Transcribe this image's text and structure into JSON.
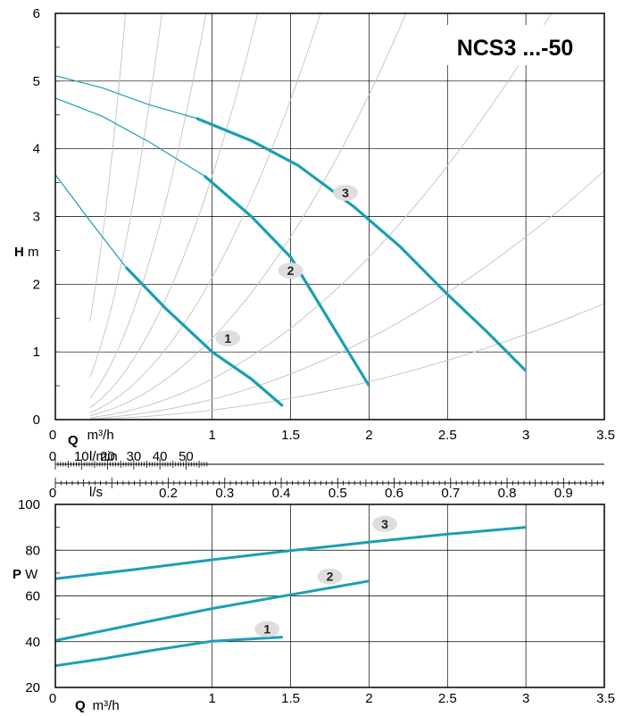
{
  "chart_title": "NCS3 ...-50",
  "colors": {
    "curve": "#1a9fb3",
    "system": "#c2c2c2",
    "grid": "#000000",
    "badge": "#dedede"
  },
  "chart_data": [
    {
      "type": "line",
      "name": "head",
      "ylabel_bold": "H",
      "ylabel": "m",
      "xlim": [
        0,
        3.5
      ],
      "ylim": [
        0,
        6
      ],
      "x_ticks": [
        "0",
        "1",
        "1.5",
        "2",
        "2.5",
        "3",
        "3.5"
      ],
      "x_tick_values": [
        0,
        1,
        1.5,
        2,
        2.5,
        3,
        3.5
      ],
      "y_ticks": [
        "0",
        "1",
        "2",
        "3",
        "4",
        "5",
        "6"
      ],
      "y_tick_values": [
        0,
        1,
        2,
        3,
        4,
        5,
        6
      ],
      "series": [
        {
          "label": "1",
          "thin": [
            [
              0,
              3.62
            ],
            [
              0.2,
              3.0
            ],
            [
              0.45,
              2.25
            ]
          ],
          "thick": [
            [
              0.45,
              2.25
            ],
            [
              0.7,
              1.65
            ],
            [
              1.0,
              1.0
            ],
            [
              1.25,
              0.6
            ],
            [
              1.45,
              0.2
            ]
          ]
        },
        {
          "label": "2",
          "thin": [
            [
              0,
              4.75
            ],
            [
              0.3,
              4.48
            ],
            [
              0.6,
              4.1
            ],
            [
              0.95,
              3.6
            ]
          ],
          "thick": [
            [
              0.95,
              3.6
            ],
            [
              1.25,
              3.0
            ],
            [
              1.5,
              2.4
            ],
            [
              1.75,
              1.45
            ],
            [
              2.0,
              0.5
            ]
          ]
        },
        {
          "label": "3",
          "thin": [
            [
              0,
              5.08
            ],
            [
              0.3,
              4.9
            ],
            [
              0.6,
              4.65
            ],
            [
              0.9,
              4.45
            ]
          ],
          "thick": [
            [
              0.9,
              4.45
            ],
            [
              1.25,
              4.12
            ],
            [
              1.55,
              3.75
            ],
            [
              1.9,
              3.15
            ],
            [
              2.2,
              2.55
            ],
            [
              2.5,
              1.85
            ],
            [
              2.75,
              1.3
            ],
            [
              3.0,
              0.72
            ]
          ]
        }
      ],
      "series_labels_at": [
        [
          1.1,
          1.2
        ],
        [
          1.5,
          2.2
        ],
        [
          1.85,
          3.35
        ]
      ],
      "system_curves_k": [
        30,
        13,
        6.5,
        3.6,
        2.1,
        1.2,
        0.6,
        0.3,
        0.14
      ],
      "system_curves_start": 0.22
    },
    {
      "type": "line",
      "name": "power",
      "ylabel_bold": "P",
      "ylabel": "W",
      "xlabel_bold": "Q",
      "xlabel": "m³/h",
      "xlim": [
        0,
        3.5
      ],
      "ylim": [
        20,
        100
      ],
      "x_ticks": [
        "0",
        "1",
        "1.5",
        "2",
        "2.5",
        "3",
        "3.5"
      ],
      "x_tick_values": [
        0,
        1,
        1.5,
        2,
        2.5,
        3,
        3.5
      ],
      "y_ticks": [
        "20",
        "40",
        "60",
        "80",
        "100"
      ],
      "y_tick_values": [
        20,
        40,
        60,
        80,
        100
      ],
      "series": [
        {
          "label": "1",
          "values": [
            [
              0,
              29.5
            ],
            [
              0.3,
              32.5
            ],
            [
              0.6,
              36
            ],
            [
              1.0,
              40.2
            ],
            [
              1.45,
              42
            ]
          ]
        },
        {
          "label": "2",
          "values": [
            [
              0,
              40.5
            ],
            [
              0.5,
              47.5
            ],
            [
              1.0,
              54.5
            ],
            [
              1.5,
              60.5
            ],
            [
              2.0,
              66.5
            ]
          ]
        },
        {
          "label": "3",
          "values": [
            [
              0,
              67.5
            ],
            [
              0.5,
              71.5
            ],
            [
              1.0,
              75.8
            ],
            [
              1.5,
              79.8
            ],
            [
              2.0,
              83.5
            ],
            [
              2.5,
              87
            ],
            [
              3.0,
              90
            ]
          ]
        }
      ],
      "series_labels_at": [
        [
          1.35,
          45.5
        ],
        [
          1.75,
          68.5
        ],
        [
          2.1,
          91.5
        ]
      ]
    }
  ],
  "scales": {
    "q_m3h": {
      "label_bold": "Q",
      "label": "m³/h",
      "ticks": [
        "0",
        "1",
        "1.5",
        "2",
        "2.5",
        "3",
        "3.5"
      ]
    },
    "q_lmin": {
      "label": "l/min",
      "ticks": [
        "0",
        "10",
        "20",
        "30",
        "40",
        "50"
      ],
      "values": [
        0,
        10,
        20,
        30,
        40,
        50
      ]
    },
    "q_ls": {
      "label": "l/s",
      "ticks": [
        "0",
        "0.2",
        "0.3",
        "0.4",
        "0.5",
        "0.6",
        "0.7",
        "0.8",
        "0.9"
      ],
      "values": [
        0,
        0.2,
        0.3,
        0.4,
        0.5,
        0.6,
        0.7,
        0.8,
        0.9
      ]
    }
  }
}
